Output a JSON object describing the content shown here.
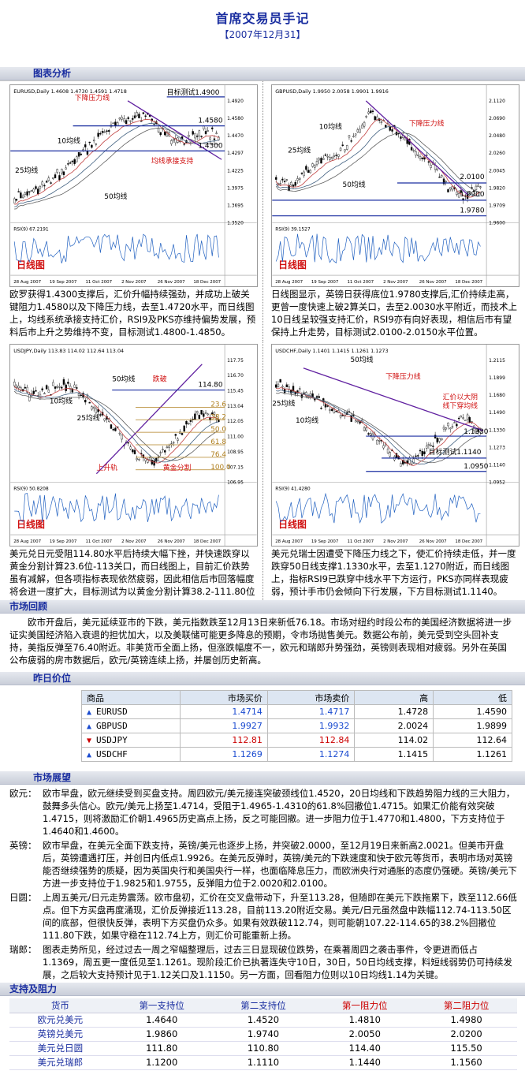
{
  "header": {
    "title": "首席交易员手记",
    "date": "【2007年12月31】"
  },
  "sections": {
    "chart_analysis": "图表分析",
    "review": "市场回顾",
    "prices": "昨日价位",
    "outlook": "市场展望",
    "sr": "支持及阻力"
  },
  "charts": [
    {
      "symbol": "EURUSD,Daily",
      "ohlc": "1.4608 1.4730 1.4591 1.4718",
      "rsi": "RSI(9) 67.2191",
      "tag": "日线图",
      "labels": {
        "resist": "下降压力线",
        "target": "目标测试1.4900",
        "l1": "1.4580",
        "l2": "1.4300",
        "ma10": "10均线",
        "ma25": "25均线",
        "ma50": "50均线",
        "support": "均线承接支持"
      },
      "axis": [
        "1.4920",
        "1.4580",
        "1.4470",
        "1.4297",
        "1.4225",
        "1.3975",
        "1.3695",
        "1.3520"
      ],
      "dates": [
        "28 Aug 2007",
        "19 Sep 2007",
        "11 Oct 2007",
        "2 Nov 2007",
        "26 Nov 2007",
        "18 Dec 2007"
      ],
      "caption": "欧罗获得1.4300支撑后，汇价升幅持续强劲，并成功上破关键阻力1.4580以及下降压力线，去至1.4720水平，而日线图上，均线系统承接支持汇价，RSI9及PKS亦维持偏势发展，预料后市上升之势维持不变，目标测试1.4800-1.4850。"
    },
    {
      "symbol": "GBPUSD,Daily",
      "ohlc": "1.9950 2.0058 1.9901 1.9916",
      "rsi": "RSI(9) 39.1527",
      "tag": "日线图",
      "labels": {
        "resist": "下降压力线",
        "ma10": "10均线",
        "ma25": "25均线",
        "ma50": "50均线",
        "l1": "2.0100",
        "l2": "1.9900",
        "l3": "1.9780"
      },
      "axis": [
        "2.1120",
        "2.0690",
        "2.0480",
        "2.0260",
        "2.0045",
        "1.9820",
        "1.9709",
        "1.9600"
      ],
      "dates": [
        "28 Aug 2007",
        "19 Sep 2007",
        "11 Oct 2007",
        "2 Nov 2007",
        "26 Nov 2007",
        "18 Dec 2007"
      ],
      "caption": "日线图显示，英镑日获得底位1.9780支撑后,汇价持续走高，更曾一度快速上破2算关口，去至2.0030水平附近，而技术上10日线呈较强支持汇价，RSI9亦有向好表现，相信后市有望保持上升走势，目标测试2.0100-2.0150水平位置。"
    },
    {
      "symbol": "USDJPY,Daily",
      "ohlc": "113.83 114.02 112.64 113.04",
      "rsi": "RSI(9) 50.8208",
      "tag": "日线图",
      "labels": {
        "fall": "跌破",
        "l1": "114.80",
        "ma50": "50均线",
        "ma10": "10均线",
        "ma25": "25均线",
        "trend": "上升轨",
        "fib": "黄金分割",
        "f1": "23.6",
        "f2": "38.2",
        "f3": "50.0",
        "f4": "61.8",
        "f5": "76.4",
        "f6": "100.0"
      },
      "axis": [
        "117.75",
        "116.70",
        "115.45",
        "113.04",
        "112.05",
        "111.00",
        "108.95",
        "107.15",
        "106.95"
      ],
      "dates": [
        "28 Aug 2007",
        "19 Sep 2007",
        "11 Oct 2007",
        "2 Nov 2007",
        "26 Nov 2007",
        "18 Dec 2007"
      ],
      "caption": "美元兑日元受阻114.80水平后持续大幅下挫，并快速跌穿以黄金分割计算23.6位-113关口，而日线图上，目前汇价跌势虽有减解，但各项指标表现依然疲弱，因此相信后市回落幅度将会进一度扩大，目标测试为以黄金分割计算38.2-111.80位置。"
    },
    {
      "symbol": "USDCHF,Daily",
      "ohlc": "1.1401 1.1415 1.1261 1.1273",
      "rsi": "RSI(9) 41.4280",
      "tag": "日线图",
      "labels": {
        "resist": "下降压力线",
        "ma50": "50均线",
        "ma25": "25均线",
        "ma10": "10均线",
        "note1": "汇价以大阴",
        "note2": "线下穿均线",
        "l1": "1.1330",
        "l2": "目标测试1.1140",
        "l3": "1.0950"
      },
      "axis": [
        "1.2115",
        "1.1899",
        "1.1680",
        "1.1490",
        "1.1330",
        "1.1273",
        "1.1140",
        "1.0952"
      ],
      "dates": [
        "28 Aug 2007",
        "19 Sep 2007",
        "11 Oct 2007",
        "2 Nov 2007",
        "26 Nov 2007",
        "18 Dec 2007"
      ],
      "caption": "美元兑瑞士因遭受下降压力线之下，使汇价持续走低，并一度跌穿50日线支撑1.1330水平，去至1.1270附近，而日线图上，指标RSI9已跌穿中线水平下方运行，PKS亦同样表现疲弱，预计手市仍会倾向下行发展，下方目标测试1.1140。"
    }
  ],
  "review": "欧市开盘后，美元延续亚市的下跌，美元指数跌至12月13日来新低76.18。市场对纽约时段公布的美国经济数据将进一步证实美国经济陷入衰退的担忧加大，以及美联储可能更多降息的预期，令市场抛售美元。数据公布前，美元受到空头回补支持，美指反弹至76.40附近。非美货币全面上扬，但涨跌幅度不一，欧元和瑞郎升势强劲，英镑则表现相对疲弱。另外在英国公布疲弱的房市数据后，欧元/英镑连续上扬，并屡创历史新高。",
  "price_table": {
    "headers": [
      "商品",
      "市场买价",
      "市场卖价",
      "高",
      "低"
    ],
    "rows": [
      {
        "name": "EURUSD",
        "bid": "1.4714",
        "ask": "1.4717",
        "high": "1.4728",
        "low": "1.4590",
        "dir": "up"
      },
      {
        "name": "GBPUSD",
        "bid": "1.9927",
        "ask": "1.9932",
        "high": "2.0024",
        "low": "1.9899",
        "dir": "up"
      },
      {
        "name": "USDJPY",
        "bid": "112.81",
        "ask": "112.84",
        "high": "114.02",
        "low": "112.64",
        "dir": "down"
      },
      {
        "name": "USDCHF",
        "bid": "1.1269",
        "ask": "1.1274",
        "high": "1.1415",
        "low": "1.1261",
        "dir": "up"
      }
    ]
  },
  "outlook": [
    {
      "k": "欧元：",
      "v": "欧市早盘，欧元继续受到买盘支持。周四欧元/美元接连突破颈线位1.4520，20日均线和下跌趋势阻力线的三大阻力，鼓舞多头信心。欧元/美元上扬至1.4714，受阻于1.4965-1.4310的61.8%回撤位1.4715。如果汇价能有效突破1.4715，则将激励汇价朝1.4965历史高点上扬，反之可能回撤。进一步阻力位于1.4770和1.4800，下方支持位于1.4640和1.4600。"
    },
    {
      "k": "英镑：",
      "v": "欧市早盘，在美元全面下跌支持，英镑/美元也逐步上扬，并突破2.0000，至12月19日来新高2.0021。但美市开盘后，英镑遭遇打压，并创日内低点1.9926。在美元反弹时，英镑/美元的下跌速度和快于欧元等货币，表明市场对英镑能否继续强势的质疑，因为英国央行和美国央行一样，也面临降息压力，而欧洲央行对通胀的态度仍强硬。英镑/美元下方进一步支持位于1.9825和1.9755，反弹阻力位于2.0020和2.0100。"
    },
    {
      "k": "日圆：",
      "v": "上周五美元/日元走势震荡。欧市盘初，汇价在交叉盘带动下，升至113.28，但随即在美元下跌拖累下，跌至112.66低点。但下方买盘再度涌现，汇价反弹接近113.28，目前113.20附近交易。美元/日元虽然盘中跌幅112.74-113.50区间的底部，但很快反弹，表明下方买盘仍众多。如果有效跌破112.74，则可能朝107.22-114.65的38.2%回撤位111.80下跌，如果守稳在112.74上方，则汇价可能重新上扬。"
    },
    {
      "k": "瑞郎：",
      "v": "图表走势所见，经过过去一周之窄幅整理后，过去三日显现破位跌势，在乘著周四之袭击事件，令更进而低占1.1369，周五更一度低见至1.1261。现阶段汇价已执著连失守10日，30日，50日均线支撑，料短线弱势仍可持续发展，之后较大支持预计见于1.12关口及1.1150。另一方面，回看阻力位则以10日均线1.14为关键。"
    }
  ],
  "sr_table": {
    "headers": [
      "货币",
      "第一支持位",
      "第二支持位",
      "第一阻力位",
      "第二阻力位"
    ],
    "rows": [
      {
        "name": "欧元兑美元",
        "s1": "1.4640",
        "s2": "1.4520",
        "r1": "1.4810",
        "r2": "1.4980"
      },
      {
        "name": "英镑兑美元",
        "s1": "1.9860",
        "s2": "1.9740",
        "r1": "2.0050",
        "r2": "2.0200"
      },
      {
        "name": "美元兑日圆",
        "s1": "111.80",
        "s2": "110.80",
        "r1": "114.40",
        "r2": "115.50"
      },
      {
        "name": "美元兑瑞郎",
        "s1": "1.1200",
        "s2": "1.1110",
        "r1": "1.1440",
        "r2": "1.1560"
      }
    ]
  }
}
